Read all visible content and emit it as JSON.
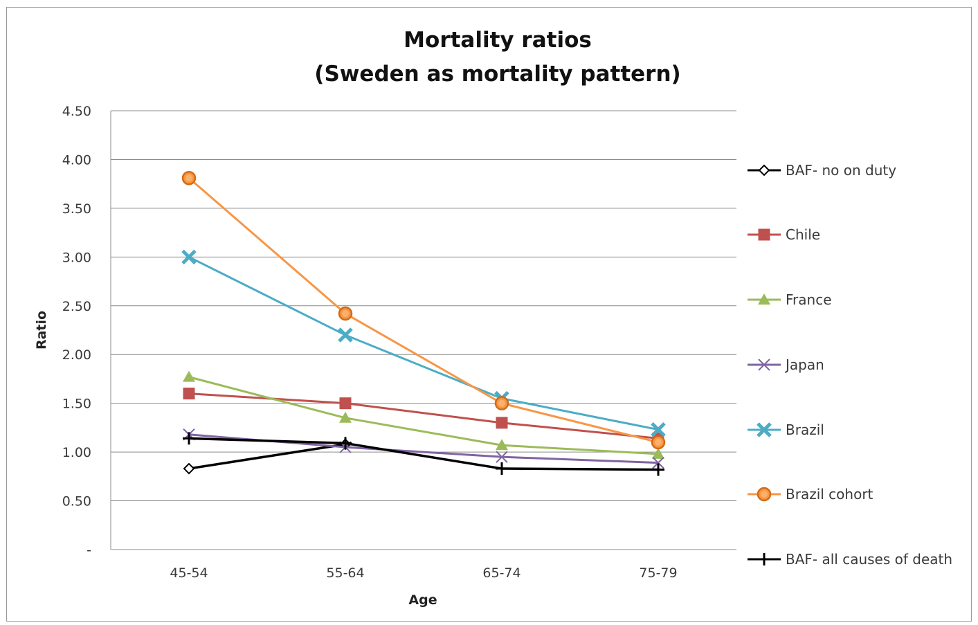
{
  "chart_data": {
    "type": "line",
    "title": [
      "Mortality ratios",
      "(Sweden as mortality pattern)"
    ],
    "xlabel": "Age",
    "ylabel": "Ratio",
    "categories": [
      "45-54",
      "55-64",
      "65-74",
      "75-79"
    ],
    "ylim": [
      0,
      4.5
    ],
    "yticks": [
      0,
      0.5,
      1.0,
      1.5,
      2.0,
      2.5,
      3.0,
      3.5,
      4.0,
      4.5
    ],
    "ytick_labels": [
      "-",
      "0.50",
      "1.00",
      "1.50",
      "2.00",
      "2.50",
      "3.00",
      "3.50",
      "4.00",
      "4.50"
    ],
    "grid": "horizontal",
    "legend": "right",
    "series": [
      {
        "name": "BAF- no on duty",
        "values": [
          0.83,
          1.08,
          null,
          null
        ],
        "color": "#000000",
        "marker": "diamond"
      },
      {
        "name": "Chile",
        "values": [
          1.6,
          1.5,
          1.3,
          1.14
        ],
        "color": "#c0504d",
        "marker": "square"
      },
      {
        "name": "France",
        "values": [
          1.77,
          1.35,
          1.07,
          0.98
        ],
        "color": "#9bbb59",
        "marker": "triangle"
      },
      {
        "name": "Japan",
        "values": [
          1.18,
          1.05,
          0.95,
          0.89
        ],
        "color": "#8064a2",
        "marker": "x"
      },
      {
        "name": "Brazil",
        "values": [
          3.0,
          2.2,
          1.55,
          1.23
        ],
        "color": "#4bacc6",
        "marker": "xsquare"
      },
      {
        "name": "Brazil cohort",
        "values": [
          3.81,
          2.42,
          1.5,
          1.1
        ],
        "color": "#f79646",
        "marker": "circle"
      },
      {
        "name": "BAF- all causes of death",
        "values": [
          1.14,
          1.09,
          0.83,
          0.82
        ],
        "color": "#000000",
        "marker": "plus"
      }
    ]
  }
}
